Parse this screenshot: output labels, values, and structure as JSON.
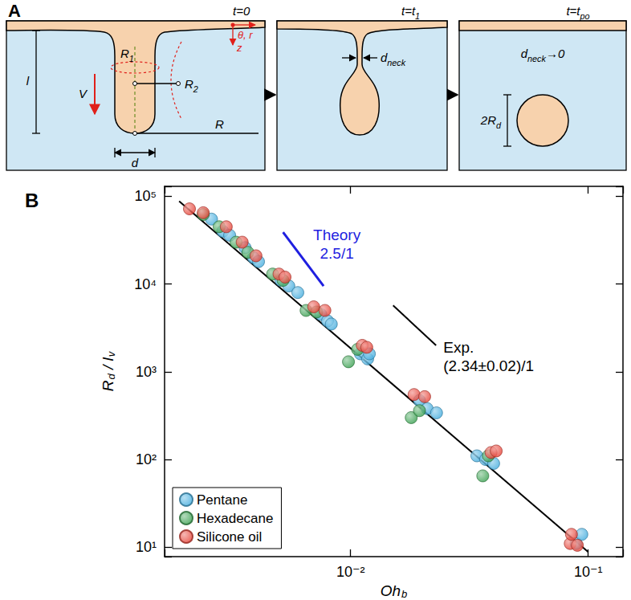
{
  "panel_a": {
    "letter": "A",
    "time_labels": [
      [
        {
          "t": "t=0"
        }
      ],
      [
        {
          "t": "t=t",
          "sub": "1"
        }
      ],
      [
        {
          "t": "t=t",
          "sub": "po"
        }
      ]
    ],
    "length": [
      {
        "t": "l"
      }
    ],
    "velocity": [
      {
        "t": "V"
      }
    ],
    "R1": [
      {
        "t": "R",
        "sub": "1"
      }
    ],
    "R2": [
      {
        "t": "R",
        "sub": "2"
      }
    ],
    "coords": [
      {
        "t": "θ, r"
      }
    ],
    "z": [
      {
        "t": "z"
      }
    ],
    "diameter": [
      {
        "t": "d"
      }
    ],
    "radius": [
      {
        "t": "R"
      }
    ],
    "neck": [
      {
        "t": "d",
        "sub": "neck"
      }
    ],
    "neck_final": [
      {
        "t": "d",
        "sub": "neck"
      },
      {
        "t": "→0"
      }
    ],
    "drop": [
      {
        "t": "2R",
        "sub": "d"
      }
    ]
  },
  "chart_data": {
    "type": "scatter",
    "panel_label": "B",
    "xlabel": [
      {
        "t": "Oh",
        "sub": "b"
      }
    ],
    "ylabel": [
      {
        "t": "R",
        "sub": "d"
      },
      {
        "t": " / "
      },
      {
        "t": "l",
        "sub": "v"
      }
    ],
    "log": true,
    "grid": false,
    "legend": "lower left",
    "xlim": [
      0.00165,
      0.14
    ],
    "ylim": [
      7.8,
      130000
    ],
    "xticks": [
      {
        "value": 0.01,
        "label": "10⁻²"
      },
      {
        "value": 0.1,
        "label": "10⁻¹"
      }
    ],
    "yticks": [
      {
        "value": 10,
        "label": "10¹"
      },
      {
        "value": 100,
        "label": "10²"
      },
      {
        "value": 1000,
        "label": "10³"
      },
      {
        "value": 10000,
        "label": "10⁴"
      },
      {
        "value": 100000,
        "label": "10⁵"
      }
    ],
    "series": [
      {
        "name": "Pentane",
        "color": "#3aa8dc",
        "marker": "circle",
        "x": [
          0.0026,
          0.0029,
          0.0031,
          0.0036,
          0.0039,
          0.0041,
          0.0051,
          0.0055,
          0.006,
          0.0075,
          0.008,
          0.0083,
          0.011,
          0.0118,
          0.012,
          0.0195,
          0.021,
          0.023,
          0.034,
          0.037,
          0.04,
          0.089,
          0.094
        ],
        "values": [
          55000,
          40000,
          36000,
          26000,
          20000,
          18000,
          11000,
          9500,
          8000,
          4500,
          3800,
          3500,
          1600,
          1400,
          1600,
          470,
          380,
          340,
          110,
          100,
          90,
          11,
          14
        ]
      },
      {
        "name": "Hexadecane",
        "color": "#2f9b47",
        "marker": "circle",
        "x": [
          0.0024,
          0.0028,
          0.0033,
          0.0037,
          0.0047,
          0.0052,
          0.0065,
          0.0072,
          0.0098,
          0.0107,
          0.018,
          0.0195,
          0.036,
          0.038
        ],
        "values": [
          62000,
          45000,
          30000,
          23000,
          13000,
          11000,
          5000,
          4800,
          1300,
          1800,
          300,
          360,
          65,
          110
        ]
      },
      {
        "name": "Silicone oil",
        "color": "#e53a2e",
        "marker": "circle",
        "x": [
          0.0021,
          0.0024,
          0.003,
          0.0035,
          0.004,
          0.005,
          0.0053,
          0.007,
          0.0078,
          0.0112,
          0.0117,
          0.0185,
          0.0205,
          0.039,
          0.041,
          0.084,
          0.085,
          0.09
        ],
        "values": [
          72000,
          65000,
          45000,
          30000,
          21000,
          13000,
          12000,
          5500,
          5000,
          2000,
          1900,
          550,
          520,
          120,
          125,
          11,
          14,
          10.5
        ]
      }
    ],
    "lines": [
      {
        "name": "Theory",
        "label": "2.5/1",
        "color": "#1f1fe0",
        "line_style": "solid",
        "x": [
          0.0052,
          0.0077
        ],
        "values": [
          39000,
          9500
        ]
      },
      {
        "name": "Exp.",
        "label": "(2.34±0.02)/1",
        "color": "#000000",
        "line_style": "solid",
        "x": [
          0.0151,
          0.0229
        ],
        "values": [
          5700,
          2000
        ]
      },
      {
        "color": "#000000",
        "line_style": "solid",
        "x": [
          0.0019,
          0.1
        ],
        "values": [
          88000,
          8.8
        ]
      }
    ]
  }
}
